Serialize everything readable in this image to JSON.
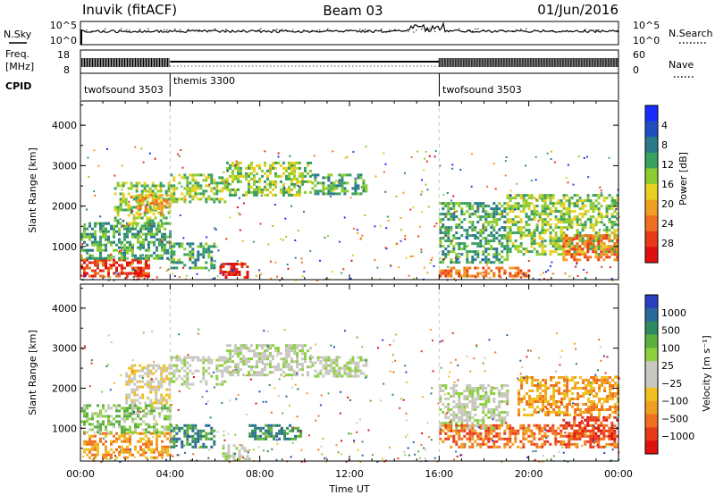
{
  "header": {
    "station": "Inuvik (fitACF)",
    "beam": "Beam 03",
    "date": "01/Jun/2016"
  },
  "top_panels": {
    "nsky_label": "N.Sky",
    "nsky_ticks_left": [
      "10^5",
      "10^0"
    ],
    "nsearch_label": "N.Search",
    "nsearch_ticks_right": [
      "10^5",
      "10^0"
    ],
    "freq_label_line1": "Freq.",
    "freq_label_line2": "[MHz]",
    "freq_ticks": [
      "18",
      "8"
    ],
    "nave_label": "Nave",
    "nave_ticks": [
      "60",
      "0"
    ],
    "cpid_label": "CPID",
    "cpid_segments": [
      {
        "label": "twofsound 3503",
        "start_h": 0,
        "end_h": 4
      },
      {
        "label": "themis 3300",
        "start_h": 4,
        "end_h": 16
      },
      {
        "label": "twofsound 3503",
        "start_h": 16,
        "end_h": 24
      }
    ]
  },
  "chart_data": [
    {
      "type": "heatmap",
      "quantity": "power",
      "ylabel": "Slant Range [km]",
      "xlabel": "",
      "x_ticks": [
        "00:00",
        "04:00",
        "08:00",
        "12:00",
        "16:00",
        "20:00",
        "00:00"
      ],
      "xlim_hours": [
        0,
        24
      ],
      "y_ticks": [
        1000,
        2000,
        3000,
        4000
      ],
      "ylim_km": [
        180,
        4600
      ],
      "colorbar": {
        "label": "Power [dB]",
        "ticks": [
          "4",
          "8",
          "12",
          "16",
          "20",
          "24",
          "28"
        ],
        "colors": [
          "#1a2dff",
          "#2050c0",
          "#2a7a8a",
          "#3aa060",
          "#8ccc30",
          "#e8d020",
          "#f0a020",
          "#f07020",
          "#e83a18",
          "#e01010"
        ]
      },
      "regions": [
        {
          "t0": 0.0,
          "t1": 3.0,
          "r0": 250,
          "r1": 700,
          "level": 8
        },
        {
          "t0": 0.0,
          "t1": 4.0,
          "r0": 700,
          "r1": 1600,
          "level": 3
        },
        {
          "t0": 1.5,
          "t1": 4.0,
          "r0": 1500,
          "r1": 2600,
          "level": 4
        },
        {
          "t0": 2.5,
          "t1": 4.0,
          "r0": 1800,
          "r1": 2300,
          "level": 6
        },
        {
          "t0": 4.0,
          "t1": 6.5,
          "r0": 2100,
          "r1": 2800,
          "level": 4
        },
        {
          "t0": 4.0,
          "t1": 6.0,
          "r0": 500,
          "r1": 1100,
          "level": 3
        },
        {
          "t0": 6.2,
          "t1": 7.4,
          "r0": 250,
          "r1": 600,
          "level": 9
        },
        {
          "t0": 6.5,
          "t1": 10.3,
          "r0": 2300,
          "r1": 3100,
          "level": 4
        },
        {
          "t0": 10.3,
          "t1": 12.8,
          "r0": 2300,
          "r1": 2800,
          "level": 3
        },
        {
          "t0": 16.0,
          "t1": 19.0,
          "r0": 600,
          "r1": 2100,
          "level": 3
        },
        {
          "t0": 19.0,
          "t1": 24.0,
          "r0": 800,
          "r1": 2300,
          "level": 4
        },
        {
          "t0": 21.5,
          "t1": 24.0,
          "r0": 700,
          "r1": 1300,
          "level": 7
        },
        {
          "t0": 16.0,
          "t1": 20.0,
          "r0": 250,
          "r1": 500,
          "level": 7
        }
      ]
    },
    {
      "type": "heatmap",
      "quantity": "velocity",
      "ylabel": "Slant Range [km]",
      "xlabel": "Time UT",
      "x_ticks": [
        "00:00",
        "04:00",
        "08:00",
        "12:00",
        "16:00",
        "20:00",
        "00:00"
      ],
      "xlim_hours": [
        0,
        24
      ],
      "y_ticks": [
        1000,
        2000,
        3000,
        4000
      ],
      "ylim_km": [
        180,
        4600
      ],
      "colorbar": {
        "label": "Velocity [m s⁻¹]",
        "ticks": [
          "1000",
          "500",
          "100",
          "25",
          "−25",
          "−100",
          "−500",
          "−1000"
        ],
        "colors": [
          "#2840c0",
          "#2a6a9a",
          "#2e8a60",
          "#5cb040",
          "#8cd040",
          "#c8c8c0",
          "#c8c8c0",
          "#f0c020",
          "#f0a020",
          "#f07020",
          "#e83a18",
          "#e01010"
        ]
      },
      "regions": [
        {
          "t0": 0.0,
          "t1": 4.0,
          "r0": 250,
          "r1": 900,
          "level": 8
        },
        {
          "t0": 0.0,
          "t1": 4.0,
          "r0": 900,
          "r1": 1600,
          "level": 4
        },
        {
          "t0": 2.0,
          "t1": 4.0,
          "r0": 1600,
          "r1": 2600,
          "level": 6
        },
        {
          "t0": 4.0,
          "t1": 6.5,
          "r0": 2100,
          "r1": 2800,
          "level": 5
        },
        {
          "t0": 4.0,
          "t1": 6.0,
          "r0": 500,
          "r1": 1100,
          "level": 2
        },
        {
          "t0": 6.2,
          "t1": 7.4,
          "r0": 250,
          "r1": 600,
          "level": 5
        },
        {
          "t0": 6.5,
          "t1": 10.3,
          "r0": 2300,
          "r1": 3100,
          "level": 5
        },
        {
          "t0": 7.5,
          "t1": 9.8,
          "r0": 700,
          "r1": 1100,
          "level": 2
        },
        {
          "t0": 10.3,
          "t1": 12.8,
          "r0": 2300,
          "r1": 2800,
          "level": 5
        },
        {
          "t0": 16.0,
          "t1": 19.0,
          "r0": 1000,
          "r1": 2100,
          "level": 5
        },
        {
          "t0": 16.0,
          "t1": 24.0,
          "r0": 500,
          "r1": 1100,
          "level": 9
        },
        {
          "t0": 19.5,
          "t1": 24.0,
          "r0": 1300,
          "r1": 2300,
          "level": 8
        },
        {
          "t0": 21.5,
          "t1": 24.0,
          "r0": 700,
          "r1": 1300,
          "level": 10
        }
      ]
    }
  ]
}
